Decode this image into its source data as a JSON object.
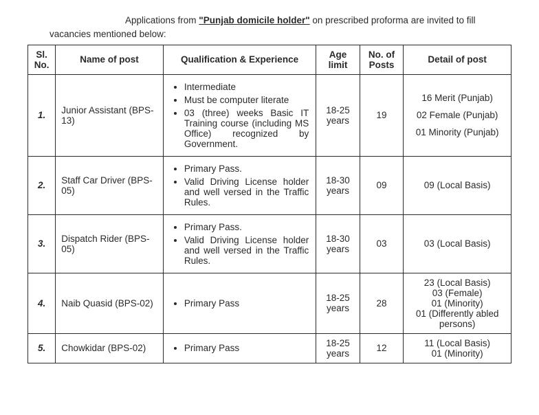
{
  "intro": {
    "prefix": "Applications from ",
    "quoted": "\"Punjab domicile holder\"",
    "suffix": " on prescribed proforma are invited to fill vacancies mentioned below:"
  },
  "headers": {
    "sl": "Sl. No.",
    "name": "Name of post",
    "qual": "Qualification & Experience",
    "age": "Age limit",
    "num": "No. of Posts",
    "detail": "Detail of post"
  },
  "rows": [
    {
      "sl": "1.",
      "name": "Junior Assistant (BPS-13)",
      "qual": [
        "Intermediate",
        "Must be computer literate",
        "03 (three) weeks Basic IT Training course (including MS Office) recognized by Government."
      ],
      "qual_justify": [
        false,
        false,
        true
      ],
      "age": "18-25 years",
      "num": "19",
      "detail": [
        "16 Merit (Punjab)",
        "02 Female (Punjab)",
        "01 Minority (Punjab)"
      ],
      "detail_multi": true
    },
    {
      "sl": "2.",
      "name": "Staff Car Driver (BPS-05)",
      "qual": [
        "Primary Pass.",
        "Valid Driving License holder and well versed in the Traffic Rules."
      ],
      "qual_justify": [
        false,
        true
      ],
      "age": "18-30 years",
      "num": "09",
      "detail": [
        "09 (Local Basis)"
      ],
      "detail_multi": false
    },
    {
      "sl": "3.",
      "name": "Dispatch Rider (BPS-05)",
      "qual": [
        "Primary Pass.",
        "Valid Driving License holder and well versed in the Traffic Rules."
      ],
      "qual_justify": [
        false,
        true
      ],
      "age": "18-30 years",
      "num": "03",
      "detail": [
        "03 (Local Basis)"
      ],
      "detail_multi": false
    },
    {
      "sl": "4.",
      "name": "Naib Quasid (BPS-02)",
      "qual": [
        "Primary Pass"
      ],
      "qual_justify": [
        false
      ],
      "age": "18-25 years",
      "num": "28",
      "detail": [
        "23 (Local Basis)",
        "03 (Female)",
        "01 (Minority)",
        "01 (Differently abled persons)"
      ],
      "detail_multi": false
    },
    {
      "sl": "5.",
      "name": "Chowkidar (BPS-02)",
      "qual": [
        "Primary Pass"
      ],
      "qual_justify": [
        false
      ],
      "age": "18-25 years",
      "num": "12",
      "detail": [
        "11 (Local Basis)",
        "01 (Minority)"
      ],
      "detail_multi": false
    }
  ]
}
